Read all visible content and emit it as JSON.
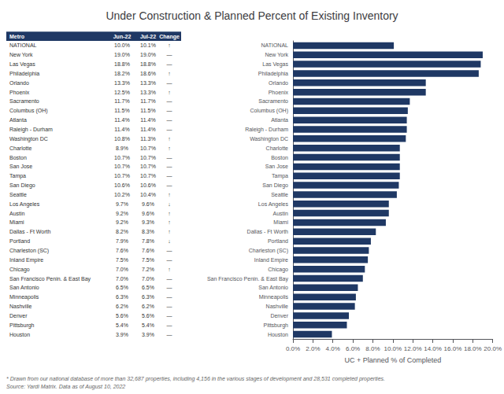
{
  "chart_data": {
    "type": "bar",
    "orientation": "horizontal",
    "title": "Under Construction & Planned Percent of Existing Inventory",
    "categories": [
      "NATIONAL",
      "New York",
      "Las Vegas",
      "Philadelphia",
      "Orlando",
      "Phoenix",
      "Sacramento",
      "Columbus (OH)",
      "Atlanta",
      "Raleigh - Durham",
      "Washington DC",
      "Charlotte",
      "Boston",
      "San Jose",
      "Tampa",
      "San Diego",
      "Seattle",
      "Los Angeles",
      "Austin",
      "Miami",
      "Dallas - Ft Worth",
      "Portland",
      "Charleston (SC)",
      "Inland Empire",
      "Chicago",
      "San Francisco Penin. & East Bay",
      "San Antonio",
      "Minneapolis",
      "Nashville",
      "Denver",
      "Pittsburgh",
      "Houston"
    ],
    "values": [
      10.1,
      19.0,
      18.8,
      18.6,
      13.3,
      13.3,
      11.7,
      11.5,
      11.4,
      11.4,
      11.3,
      10.7,
      10.7,
      10.7,
      10.7,
      10.6,
      10.4,
      9.6,
      9.6,
      9.3,
      8.3,
      7.8,
      7.6,
      7.5,
      7.2,
      7.0,
      6.5,
      6.3,
      6.2,
      5.6,
      5.4,
      3.9
    ],
    "color": "#1F3864",
    "xlabel": "UC + Planned % of Completed",
    "xlim": [
      0,
      20
    ],
    "xticks": [
      {
        "value": 0,
        "label": "0.0%"
      },
      {
        "value": 2,
        "label": "2.0%"
      },
      {
        "value": 4,
        "label": "4.0%"
      },
      {
        "value": 6,
        "label": "6.0%"
      },
      {
        "value": 8,
        "label": "8.0%"
      },
      {
        "value": 10,
        "label": "10.0%"
      },
      {
        "value": 12,
        "label": "12.0%"
      },
      {
        "value": 14,
        "label": "14.0%"
      },
      {
        "value": 16,
        "label": "16.0%"
      },
      {
        "value": 18,
        "label": "18.0%"
      },
      {
        "value": 20,
        "label": "20.0%"
      }
    ],
    "grid": false,
    "table": {
      "headers": [
        "Metro",
        "Jun-22",
        "Jul-22",
        "Change"
      ],
      "rows": [
        "NATIONAL",
        "New York",
        "Las Vegas",
        "Philadelphia",
        "Orlando",
        "Phoenix",
        "Sacramento",
        "Columbus (OH)",
        "Atlanta",
        "Raleigh - Durham",
        "Washington DC",
        "Charlotte",
        "Boston",
        "San Jose",
        "Tampa",
        "San Diego",
        "Seattle",
        "Los Angeles",
        "Austin",
        "Miami",
        "Dallas - Ft Worth",
        "Portland",
        "Charleston (SC)",
        "Inland Empire",
        "Chicago",
        "San Francisco Penin. & East Bay",
        "San Antonio",
        "Minneapolis",
        "Nashville",
        "Denver",
        "Pittsburgh",
        "Houston"
      ],
      "jun22": {
        "values": [
          10.0,
          19.0,
          18.8,
          18.2,
          13.3,
          12.5,
          11.7,
          11.5,
          11.4,
          11.4,
          10.8,
          8.9,
          10.7,
          10.7,
          10.7,
          10.6,
          10.2,
          9.7,
          9.2,
          9.2,
          8.2,
          7.9,
          7.6,
          7.5,
          7.0,
          7.0,
          6.5,
          6.3,
          6.2,
          5.6,
          5.4,
          3.9
        ],
        "value_labels": [
          "10.0%",
          "19.0%",
          "18.8%",
          "18.2%",
          "13.3%",
          "12.5%",
          "11.7%",
          "11.5%",
          "11.4%",
          "11.4%",
          "10.8%",
          "8.9%",
          "10.7%",
          "10.7%",
          "10.7%",
          "10.6%",
          "10.2%",
          "9.7%",
          "9.2%",
          "9.2%",
          "8.2%",
          "7.9%",
          "7.6%",
          "7.5%",
          "7.0%",
          "7.0%",
          "6.5%",
          "6.3%",
          "6.2%",
          "5.6%",
          "5.4%",
          "3.9%"
        ]
      },
      "jul22": {
        "values": [
          10.1,
          19.0,
          18.8,
          18.6,
          13.3,
          13.3,
          11.7,
          11.5,
          11.4,
          11.4,
          11.3,
          10.7,
          10.7,
          10.7,
          10.7,
          10.6,
          10.4,
          9.6,
          9.6,
          9.3,
          8.3,
          7.8,
          7.6,
          7.5,
          7.2,
          7.0,
          6.5,
          6.3,
          6.2,
          5.6,
          5.4,
          3.9
        ],
        "value_labels": [
          "10.1%",
          "19.0%",
          "18.8%",
          "18.6%",
          "13.3%",
          "13.3%",
          "11.7%",
          "11.5%",
          "11.4%",
          "11.4%",
          "11.3%",
          "10.7%",
          "10.7%",
          "10.7%",
          "10.7%",
          "10.6%",
          "10.4%",
          "9.6%",
          "9.6%",
          "9.3%",
          "8.3%",
          "7.8%",
          "7.6%",
          "7.5%",
          "7.2%",
          "7.0%",
          "6.5%",
          "6.3%",
          "6.2%",
          "5.6%",
          "5.4%",
          "3.9%"
        ]
      },
      "change": [
        "↑",
        "—",
        "—",
        "↑",
        "—",
        "↑",
        "—",
        "—",
        "—",
        "—",
        "↑",
        "↑",
        "—",
        "—",
        "—",
        "—",
        "↑",
        "↓",
        "↑",
        "↑",
        "↑",
        "↓",
        "—",
        "—",
        "↑",
        "—",
        "—",
        "—",
        "—",
        "—",
        "—",
        "—"
      ]
    },
    "footnote": "* Drawn from our national database of more than 32,687 properties, including 4,156 in the various stages of development and 28,531 completed properties.\nSource: Yardi Matrix. Data as of August 10, 2022"
  }
}
